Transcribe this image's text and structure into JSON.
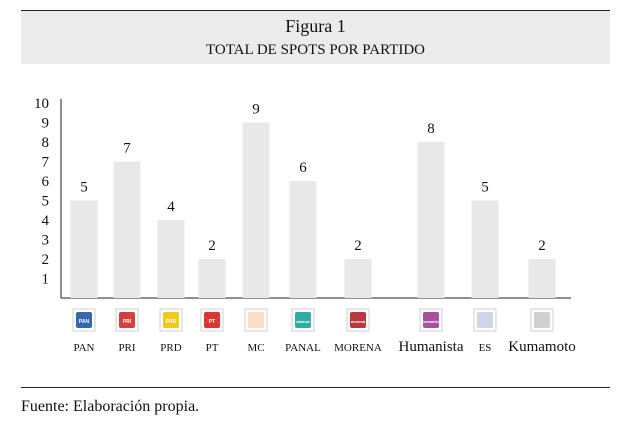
{
  "figure": {
    "title": "Figura 1",
    "subtitle": "Total de spots por partido"
  },
  "source_note": "Fuente: Elaboración propia.",
  "chart_data": {
    "type": "bar",
    "categories": [
      "PAN",
      "PRI",
      "PRD",
      "PT",
      "MC",
      "PANAL",
      "MORENA",
      "Humanista",
      "ES",
      "Kumamoto"
    ],
    "values": [
      5,
      7,
      4,
      2,
      9,
      6,
      2,
      8,
      5,
      2
    ],
    "data_labels": [
      "5",
      "7",
      "4",
      "2",
      "9",
      "6",
      "2",
      "8",
      "5",
      "2"
    ],
    "yticks": [
      "1",
      "2",
      "3",
      "4",
      "5",
      "6",
      "7",
      "8",
      "9",
      "10"
    ],
    "ylim": [
      0,
      10
    ],
    "grid": false,
    "legend": "none",
    "bar_color": "#e8e8e8",
    "logo_labels": [
      "PAN",
      "PRI",
      "PRD",
      "PT",
      "",
      "alianza",
      "morena",
      "Humanista",
      "",
      ""
    ],
    "logo_colors": [
      "#1f56a5",
      "#cf2a27",
      "#f2c200",
      "#d62020",
      "#f07c14",
      "#1aa39a",
      "#b0252a",
      "#9c3d95",
      "#2f5ea8",
      "#444444"
    ]
  }
}
